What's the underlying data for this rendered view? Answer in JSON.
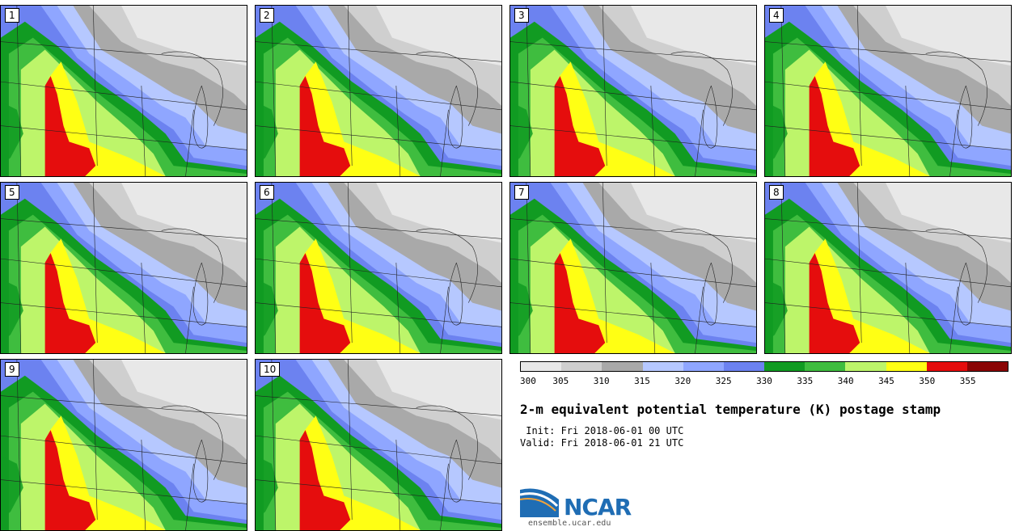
{
  "panels": [
    {
      "label": "1"
    },
    {
      "label": "2"
    },
    {
      "label": "3"
    },
    {
      "label": "4"
    },
    {
      "label": "5"
    },
    {
      "label": "6"
    },
    {
      "label": "7"
    },
    {
      "label": "8"
    },
    {
      "label": "9"
    },
    {
      "label": "10"
    }
  ],
  "colorbar": {
    "colors": [
      "#e8e8e8",
      "#cfcfcf",
      "#a9a9a9",
      "#b6c8ff",
      "#8fa6ff",
      "#6c82f0",
      "#119b22",
      "#3fbd3f",
      "#bdf56a",
      "#ffff14",
      "#e50d0d",
      "#8a0404"
    ],
    "labels": [
      "300",
      "305",
      "310",
      "315",
      "320",
      "325",
      "330",
      "335",
      "340",
      "345",
      "350",
      "355"
    ]
  },
  "title": "2-m equivalent potential temperature (K) postage stamp",
  "init": " Init: Fri 2018-06-01 00 UTC",
  "valid": "Valid: Fri 2018-06-01 21 UTC",
  "logo": {
    "text": "NCAR",
    "url": "ensemble.ucar.edu"
  }
}
